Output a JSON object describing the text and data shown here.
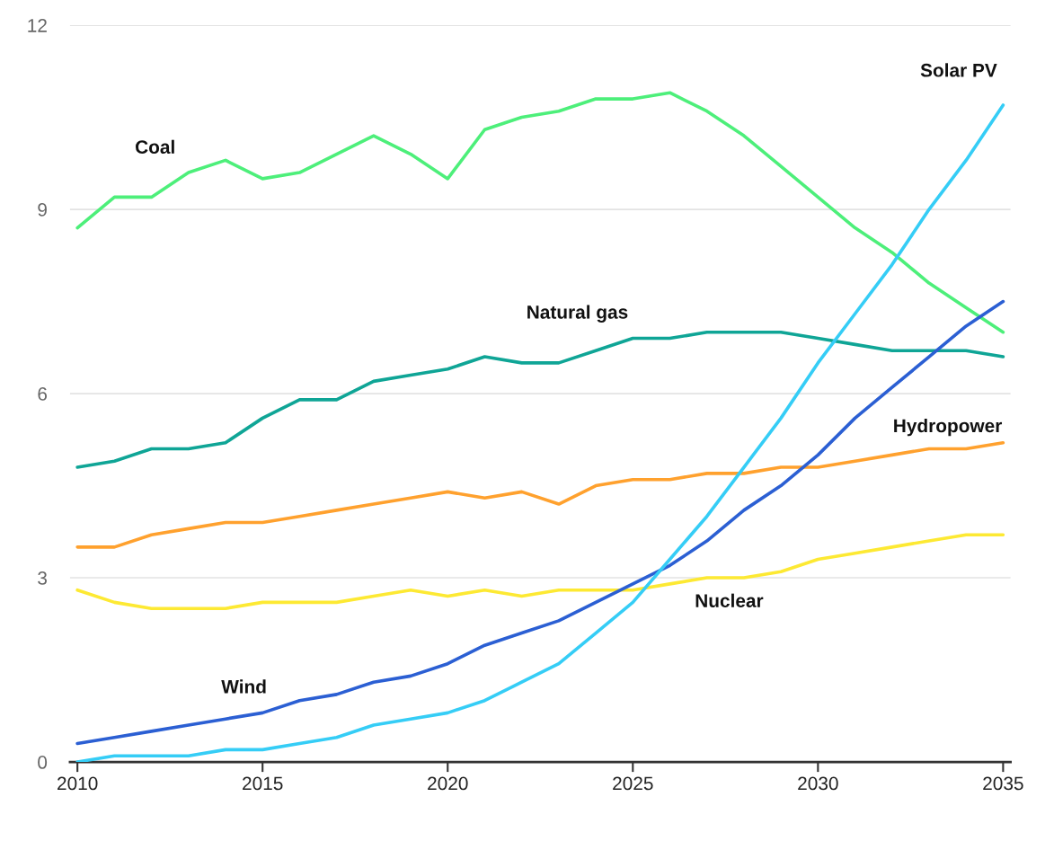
{
  "chart_data": {
    "type": "line",
    "x": [
      2010,
      2011,
      2012,
      2013,
      2014,
      2015,
      2016,
      2017,
      2018,
      2019,
      2020,
      2021,
      2022,
      2023,
      2024,
      2025,
      2026,
      2027,
      2028,
      2029,
      2030,
      2031,
      2032,
      2033,
      2034,
      2035
    ],
    "series": [
      {
        "name": "Coal",
        "color": "#4def7a",
        "values": [
          8.7,
          9.2,
          9.2,
          9.6,
          9.8,
          9.5,
          9.6,
          9.9,
          10.2,
          9.9,
          9.5,
          10.3,
          10.5,
          10.6,
          10.8,
          10.8,
          10.9,
          10.6,
          10.2,
          9.7,
          9.2,
          8.7,
          8.3,
          7.8,
          7.4,
          7.0
        ]
      },
      {
        "name": "Natural gas",
        "color": "#0fa596",
        "values": [
          4.8,
          4.9,
          5.1,
          5.1,
          5.2,
          5.6,
          5.9,
          5.9,
          6.2,
          6.3,
          6.4,
          6.6,
          6.5,
          6.5,
          6.7,
          6.9,
          6.9,
          7.0,
          7.0,
          7.0,
          6.9,
          6.8,
          6.7,
          6.7,
          6.7,
          6.6
        ]
      },
      {
        "name": "Hydropower",
        "color": "#ffa12e",
        "values": [
          3.5,
          3.5,
          3.7,
          3.8,
          3.9,
          3.9,
          4.0,
          4.1,
          4.2,
          4.3,
          4.4,
          4.3,
          4.4,
          4.2,
          4.5,
          4.6,
          4.6,
          4.7,
          4.7,
          4.8,
          4.8,
          4.9,
          5.0,
          5.1,
          5.1,
          5.2
        ]
      },
      {
        "name": "Nuclear",
        "color": "#fde933",
        "values": [
          2.8,
          2.6,
          2.5,
          2.5,
          2.5,
          2.6,
          2.6,
          2.6,
          2.7,
          2.8,
          2.7,
          2.8,
          2.7,
          2.8,
          2.8,
          2.8,
          2.9,
          3.0,
          3.0,
          3.1,
          3.3,
          3.4,
          3.5,
          3.6,
          3.7,
          3.7
        ]
      },
      {
        "name": "Wind",
        "color": "#2b5fd3",
        "values": [
          0.3,
          0.4,
          0.5,
          0.6,
          0.7,
          0.8,
          1.0,
          1.1,
          1.3,
          1.4,
          1.6,
          1.9,
          2.1,
          2.3,
          2.6,
          2.9,
          3.2,
          3.6,
          4.1,
          4.5,
          5.0,
          5.6,
          6.1,
          6.6,
          7.1,
          7.5
        ]
      },
      {
        "name": "Solar PV",
        "color": "#35cdf6",
        "values": [
          0.0,
          0.1,
          0.1,
          0.1,
          0.2,
          0.2,
          0.3,
          0.4,
          0.6,
          0.7,
          0.8,
          1.0,
          1.3,
          1.6,
          2.1,
          2.6,
          3.3,
          4.0,
          4.8,
          5.6,
          6.5,
          7.3,
          8.1,
          9.0,
          9.8,
          10.7
        ]
      }
    ],
    "xlim": [
      2009.8,
      2035.2
    ],
    "ylim": [
      0,
      12
    ],
    "xticks": [
      2010,
      2015,
      2020,
      2025,
      2030,
      2035
    ],
    "yticks": [
      0,
      3,
      6,
      9,
      12
    ],
    "grid": "y",
    "legend": false,
    "marker": "none",
    "line_style": "solid"
  }
}
